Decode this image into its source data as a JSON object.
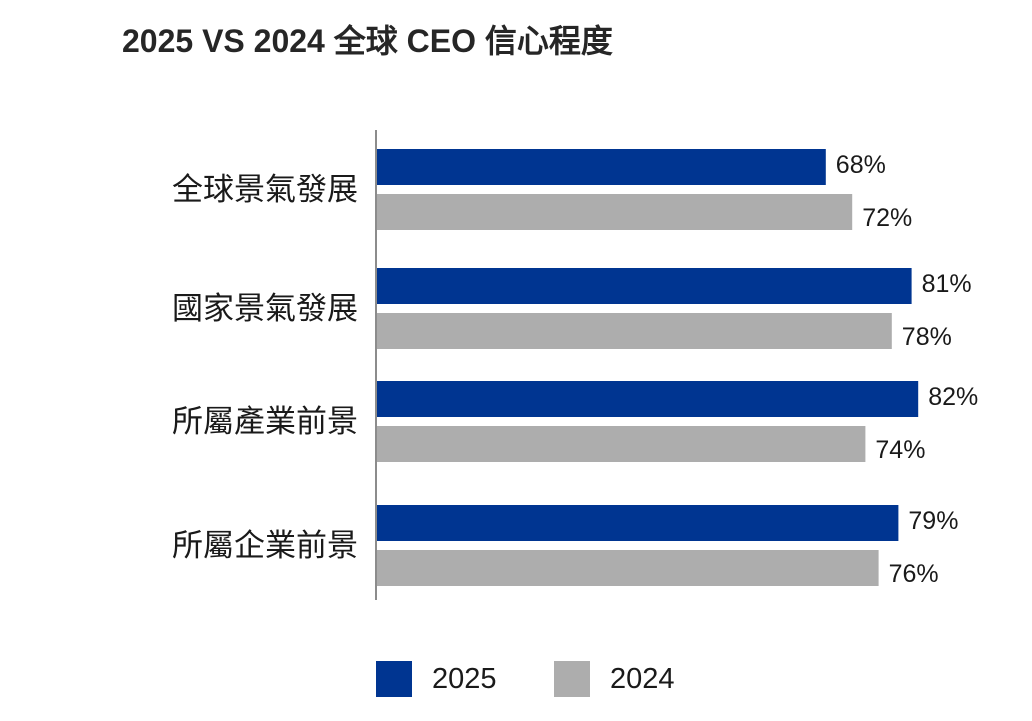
{
  "chart_data": {
    "type": "bar",
    "orientation": "horizontal",
    "title": "2025 VS 2024 全球 CEO 信心程度",
    "categories": [
      "全球景氣發展",
      "國家景氣發展",
      "所屬產業前景",
      "所屬企業前景"
    ],
    "series": [
      {
        "name": "2025",
        "values": [
          68,
          81,
          82,
          79
        ],
        "color": "#003591"
      },
      {
        "name": "2024",
        "values": [
          72,
          78,
          74,
          76
        ],
        "color": "#adadad"
      }
    ],
    "value_suffix": "%",
    "xlim": [
      0,
      100
    ],
    "grid": false,
    "legend_position": "bottom"
  }
}
